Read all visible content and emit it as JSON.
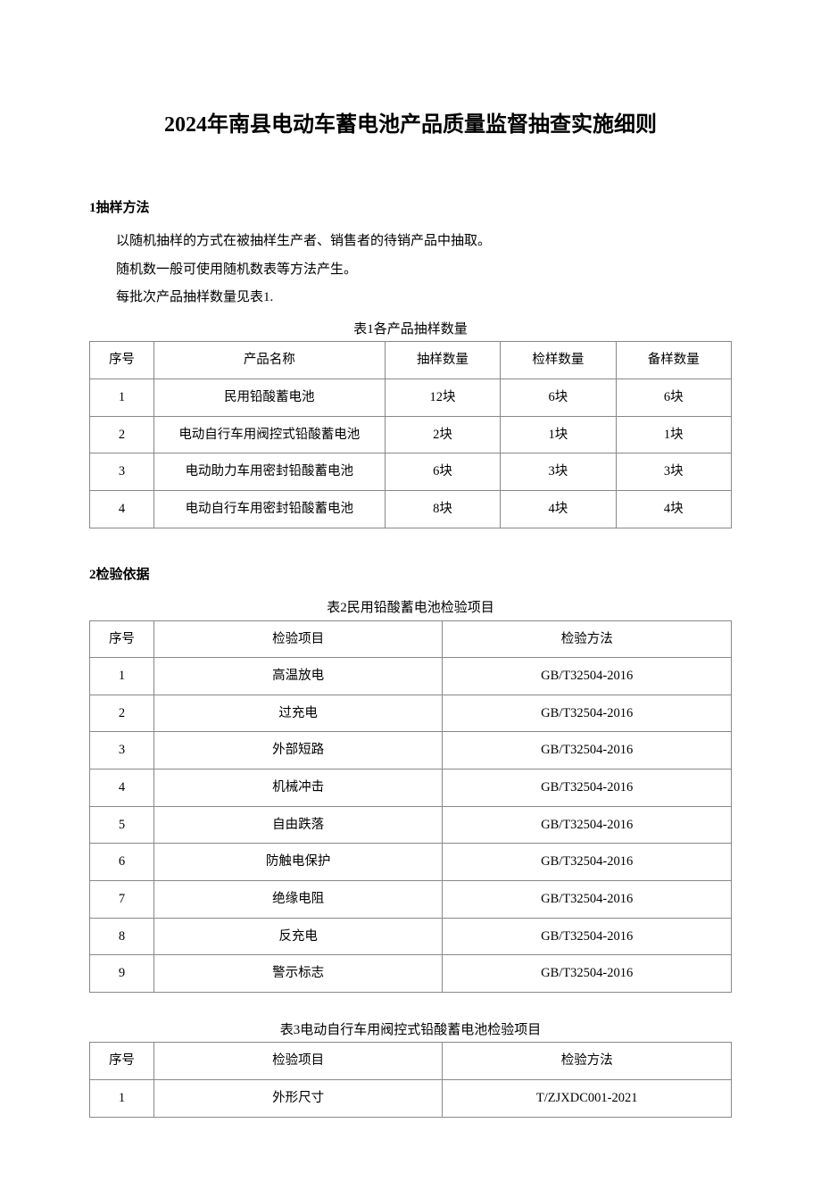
{
  "title": "2024年南县电动车蓄电池产品质量监督抽查实施细则",
  "section1": {
    "heading": "1抽样方法",
    "paragraphs": [
      "以随机抽样的方式在被抽样生产者、销售者的待销产品中抽取。",
      "随机数一般可使用随机数表等方法产生。",
      "每批次产品抽样数量见表1."
    ]
  },
  "table1": {
    "caption": "表1各产品抽样数量",
    "columns": [
      "序号",
      "产品名称",
      "抽样数量",
      "检样数量",
      "备样数量"
    ],
    "col_widths": [
      "10%",
      "36%",
      "18%",
      "18%",
      "18%"
    ],
    "rows": [
      [
        "1",
        "民用铅酸蓄电池",
        "12块",
        "6块",
        "6块"
      ],
      [
        "2",
        "电动自行车用阀控式铅酸蓄电池",
        "2块",
        "1块",
        "1块"
      ],
      [
        "3",
        "电动助力车用密封铅酸蓄电池",
        "6块",
        "3块",
        "3块"
      ],
      [
        "4",
        "电动自行车用密封铅酸蓄电池",
        "8块",
        "4块",
        "4块"
      ]
    ],
    "border_color": "#888888",
    "background_color": "#ffffff"
  },
  "section2": {
    "heading": "2检验依据"
  },
  "table2": {
    "caption": "表2民用铅酸蓄电池检验项目",
    "columns": [
      "序号",
      "检验项目",
      "检验方法"
    ],
    "col_widths": [
      "10%",
      "45%",
      "45%"
    ],
    "rows": [
      [
        "1",
        "高温放电",
        "GB/T32504-2016"
      ],
      [
        "2",
        "过充电",
        "GB/T32504-2016"
      ],
      [
        "3",
        "外部短路",
        "GB/T32504-2016"
      ],
      [
        "4",
        "机械冲击",
        "GB/T32504-2016"
      ],
      [
        "5",
        "自由跌落",
        "GB/T32504-2016"
      ],
      [
        "6",
        "防触电保护",
        "GB/T32504-2016"
      ],
      [
        "7",
        "绝缘电阻",
        "GB/T32504-2016"
      ],
      [
        "8",
        "反充电",
        "GB/T32504-2016"
      ],
      [
        "9",
        "警示标志",
        "GB/T32504-2016"
      ]
    ],
    "border_color": "#888888",
    "background_color": "#ffffff"
  },
  "table3": {
    "caption": "表3电动自行车用阀控式铅酸蓄电池检验项目",
    "columns": [
      "序号",
      "检验项目",
      "检验方法"
    ],
    "col_widths": [
      "10%",
      "45%",
      "45%"
    ],
    "rows": [
      [
        "1",
        "外形尺寸",
        "T/ZJXDC001-2021"
      ]
    ],
    "border_color": "#888888",
    "background_color": "#ffffff"
  }
}
